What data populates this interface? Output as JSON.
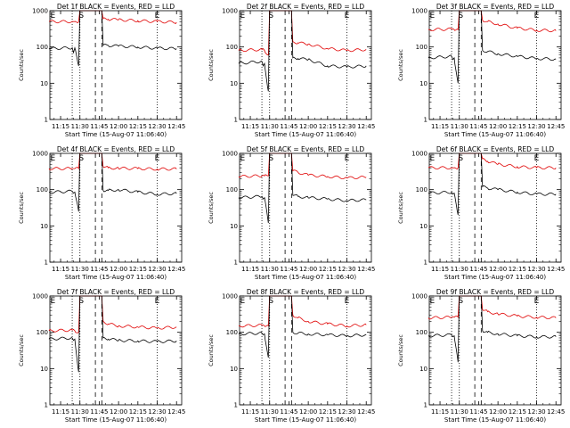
{
  "figure": {
    "colors": {
      "events": "#000000",
      "lld": "#e00000",
      "axis": "#000000"
    }
  },
  "chart_data": [
    {
      "type": "line",
      "title": "Det 1f BLACK = Events, RED = LLD",
      "xlabel": "Start Time (15-Aug-07 11:06:40)",
      "ylabel": "Counts/sec",
      "x_ticks": [
        "11:15",
        "11:30",
        "11:45",
        "12:00",
        "12:15",
        "12:30",
        "12:45"
      ],
      "y_ticks": [
        "1",
        "10",
        "100",
        "1000"
      ],
      "ylim": [
        1,
        1000
      ],
      "y_scale": "log",
      "marker_labels": [
        "E",
        "S",
        "E"
      ],
      "series": [
        {
          "color": "#e00000",
          "x": [
            "11:06",
            "11:24",
            "11:25",
            "11:26",
            "11:29",
            "11:30",
            "11:31",
            "11:32",
            "11:47",
            "11:48",
            "11:52",
            "12:00",
            "12:15",
            "12:30",
            "12:45"
          ],
          "values": [
            500,
            500,
            500,
            500,
            500,
            1000,
            1000,
            1000,
            1000,
            600,
            580,
            560,
            530,
            500,
            480
          ]
        },
        {
          "color": "#000000",
          "x": [
            "11:06",
            "11:24",
            "11:25",
            "11:26",
            "11:29",
            "11:30",
            "11:31",
            "11:32",
            "11:47",
            "11:48",
            "11:52",
            "12:00",
            "12:15",
            "12:30",
            "12:45"
          ],
          "values": [
            90,
            95,
            70,
            95,
            30,
            1000,
            1000,
            1000,
            1000,
            110,
            110,
            105,
            100,
            92,
            90
          ]
        }
      ]
    },
    {
      "type": "line",
      "title": "Det 2f BLACK = Events, RED = LLD",
      "xlabel": "Start Time (15-Aug-07 11:06:40)",
      "ylabel": "Counts/sec",
      "x_ticks": [
        "11:15",
        "11:30",
        "11:45",
        "12:00",
        "12:15",
        "12:30",
        "12:45"
      ],
      "y_ticks": [
        "1",
        "10",
        "100",
        "1000"
      ],
      "ylim": [
        1,
        1000
      ],
      "y_scale": "log",
      "marker_labels": [
        "E",
        "S",
        "E"
      ],
      "series": [
        {
          "color": "#e00000",
          "x": [
            "11:06",
            "11:24",
            "11:25",
            "11:26",
            "11:29",
            "11:30",
            "11:31",
            "11:32",
            "11:47",
            "11:48",
            "11:52",
            "12:00",
            "12:15",
            "12:30",
            "12:45"
          ],
          "values": [
            80,
            85,
            90,
            80,
            60,
            1000,
            1000,
            1000,
            1000,
            140,
            130,
            120,
            90,
            80,
            85
          ]
        },
        {
          "color": "#000000",
          "x": [
            "11:06",
            "11:24",
            "11:25",
            "11:26",
            "11:29",
            "11:30",
            "11:31",
            "11:32",
            "11:47",
            "11:48",
            "11:52",
            "12:00",
            "12:15",
            "12:30",
            "12:45"
          ],
          "values": [
            35,
            40,
            30,
            35,
            6,
            1000,
            1000,
            1000,
            1000,
            50,
            48,
            45,
            30,
            28,
            30
          ]
        }
      ]
    },
    {
      "type": "line",
      "title": "Det 3f BLACK = Events, RED = LLD",
      "xlabel": "Start Time (15-Aug-07 11:06:40)",
      "ylabel": "Counts/sec",
      "x_ticks": [
        "11:15",
        "11:30",
        "11:45",
        "12:00",
        "12:15",
        "12:30",
        "12:45"
      ],
      "y_ticks": [
        "1",
        "10",
        "100",
        "1000"
      ],
      "ylim": [
        1,
        1000
      ],
      "y_scale": "log",
      "marker_labels": [
        "E",
        "S",
        "E"
      ],
      "series": [
        {
          "color": "#e00000",
          "x": [
            "11:06",
            "11:24",
            "11:25",
            "11:26",
            "11:29",
            "11:30",
            "11:31",
            "11:32",
            "11:47",
            "11:48",
            "11:52",
            "12:00",
            "12:15",
            "12:30",
            "12:45"
          ],
          "values": [
            300,
            310,
            320,
            300,
            300,
            1000,
            1000,
            1000,
            1000,
            550,
            500,
            430,
            330,
            290,
            280
          ]
        },
        {
          "color": "#000000",
          "x": [
            "11:06",
            "11:24",
            "11:25",
            "11:26",
            "11:29",
            "11:30",
            "11:31",
            "11:32",
            "11:47",
            "11:48",
            "11:52",
            "12:00",
            "12:15",
            "12:30",
            "12:45"
          ],
          "values": [
            50,
            55,
            45,
            50,
            10,
            1000,
            1000,
            1000,
            1000,
            80,
            75,
            65,
            55,
            48,
            46
          ]
        }
      ]
    },
    {
      "type": "line",
      "title": "Det 4f BLACK = Events, RED = LLD",
      "xlabel": "Start Time (15-Aug-07 11:06:40)",
      "ylabel": "Counts/sec",
      "x_ticks": [
        "11:15",
        "11:30",
        "11:45",
        "12:00",
        "12:15",
        "12:30",
        "12:45"
      ],
      "y_ticks": [
        "1",
        "10",
        "100",
        "1000"
      ],
      "ylim": [
        1,
        1000
      ],
      "y_scale": "log",
      "marker_labels": [
        "E",
        "S",
        "E"
      ],
      "series": [
        {
          "color": "#e00000",
          "x": [
            "11:06",
            "11:24",
            "11:25",
            "11:26",
            "11:29",
            "11:30",
            "11:31",
            "11:32",
            "11:47",
            "11:48",
            "11:52",
            "12:00",
            "12:15",
            "12:30",
            "12:45"
          ],
          "values": [
            380,
            380,
            380,
            380,
            380,
            1000,
            1000,
            1000,
            1000,
            430,
            400,
            390,
            380,
            370,
            370
          ]
        },
        {
          "color": "#000000",
          "x": [
            "11:06",
            "11:24",
            "11:25",
            "11:26",
            "11:29",
            "11:30",
            "11:31",
            "11:32",
            "11:47",
            "11:48",
            "11:52",
            "12:00",
            "12:15",
            "12:30",
            "12:45"
          ],
          "values": [
            85,
            90,
            80,
            85,
            25,
            1000,
            1000,
            1000,
            1000,
            95,
            95,
            100,
            85,
            75,
            78
          ]
        }
      ]
    },
    {
      "type": "line",
      "title": "Det 5f BLACK = Events, RED = LLD",
      "xlabel": "Start Time (15-Aug-07 11:06:40)",
      "ylabel": "Counts/sec",
      "x_ticks": [
        "11:15",
        "11:30",
        "11:45",
        "12:00",
        "12:15",
        "12:30",
        "12:45"
      ],
      "y_ticks": [
        "1",
        "10",
        "100",
        "1000"
      ],
      "ylim": [
        1,
        1000
      ],
      "y_scale": "log",
      "marker_labels": [
        "E",
        "S",
        "E"
      ],
      "series": [
        {
          "color": "#e00000",
          "x": [
            "11:06",
            "11:24",
            "11:25",
            "11:26",
            "11:29",
            "11:30",
            "11:31",
            "11:32",
            "11:47",
            "11:48",
            "11:52",
            "12:00",
            "12:15",
            "12:30",
            "12:45"
          ],
          "values": [
            230,
            240,
            250,
            240,
            240,
            1000,
            1000,
            1000,
            1000,
            330,
            300,
            250,
            230,
            210,
            220
          ]
        },
        {
          "color": "#000000",
          "x": [
            "11:06",
            "11:24",
            "11:25",
            "11:26",
            "11:29",
            "11:30",
            "11:31",
            "11:32",
            "11:47",
            "11:48",
            "11:52",
            "12:00",
            "12:15",
            "12:30",
            "12:45"
          ],
          "values": [
            60,
            65,
            55,
            60,
            12,
            1000,
            1000,
            1000,
            1000,
            70,
            65,
            60,
            55,
            50,
            52
          ]
        }
      ]
    },
    {
      "type": "line",
      "title": "Det 6f BLACK = Events, RED = LLD",
      "xlabel": "Start Time (15-Aug-07 11:06:40)",
      "ylabel": "Counts/sec",
      "x_ticks": [
        "11:15",
        "11:30",
        "11:45",
        "12:00",
        "12:15",
        "12:30",
        "12:45"
      ],
      "y_ticks": [
        "1",
        "10",
        "100",
        "1000"
      ],
      "ylim": [
        1,
        1000
      ],
      "y_scale": "log",
      "marker_labels": [
        "E",
        "S",
        "E"
      ],
      "series": [
        {
          "color": "#e00000",
          "x": [
            "11:06",
            "11:24",
            "11:25",
            "11:26",
            "11:29",
            "11:30",
            "11:31",
            "11:32",
            "11:47",
            "11:48",
            "11:52",
            "12:00",
            "12:15",
            "12:30",
            "12:45"
          ],
          "values": [
            400,
            400,
            400,
            400,
            400,
            1000,
            1000,
            1000,
            1000,
            700,
            600,
            500,
            430,
            400,
            400
          ]
        },
        {
          "color": "#000000",
          "x": [
            "11:06",
            "11:24",
            "11:25",
            "11:26",
            "11:29",
            "11:30",
            "11:31",
            "11:32",
            "11:47",
            "11:48",
            "11:52",
            "12:00",
            "12:15",
            "12:30",
            "12:45"
          ],
          "values": [
            80,
            85,
            75,
            80,
            20,
            1000,
            1000,
            1000,
            1000,
            120,
            110,
            100,
            85,
            75,
            75
          ]
        }
      ]
    },
    {
      "type": "line",
      "title": "Det 7f BLACK = Events, RED = LLD",
      "xlabel": "Start Time (15-Aug-07 11:06:40)",
      "ylabel": "Counts/sec",
      "x_ticks": [
        "11:15",
        "11:30",
        "11:45",
        "12:00",
        "12:15",
        "12:30",
        "12:45"
      ],
      "y_ticks": [
        "1",
        "10",
        "100",
        "1000"
      ],
      "ylim": [
        1,
        1000
      ],
      "y_scale": "log",
      "marker_labels": [
        "E",
        "S",
        "E"
      ],
      "series": [
        {
          "color": "#e00000",
          "x": [
            "11:06",
            "11:24",
            "11:25",
            "11:26",
            "11:29",
            "11:30",
            "11:31",
            "11:32",
            "11:47",
            "11:48",
            "11:52",
            "12:00",
            "12:15",
            "12:30",
            "12:45"
          ],
          "values": [
            110,
            115,
            120,
            110,
            100,
            1000,
            1000,
            1000,
            1000,
            200,
            170,
            150,
            140,
            130,
            140
          ]
        },
        {
          "color": "#000000",
          "x": [
            "11:06",
            "11:24",
            "11:25",
            "11:26",
            "11:29",
            "11:30",
            "11:31",
            "11:32",
            "11:47",
            "11:48",
            "11:52",
            "12:00",
            "12:15",
            "12:30",
            "12:45"
          ],
          "values": [
            65,
            70,
            60,
            65,
            8,
            1000,
            1000,
            1000,
            1000,
            70,
            65,
            60,
            58,
            55,
            58
          ]
        }
      ]
    },
    {
      "type": "line",
      "title": "Det 8f BLACK = Events, RED = LLD",
      "xlabel": "Start Time (15-Aug-07 11:06:40)",
      "ylabel": "Counts/sec",
      "x_ticks": [
        "11:15",
        "11:30",
        "11:45",
        "12:00",
        "12:15",
        "12:30",
        "12:45"
      ],
      "y_ticks": [
        "1",
        "10",
        "100",
        "1000"
      ],
      "ylim": [
        1,
        1000
      ],
      "y_scale": "log",
      "marker_labels": [
        "E",
        "S",
        "E"
      ],
      "series": [
        {
          "color": "#e00000",
          "x": [
            "11:06",
            "11:24",
            "11:25",
            "11:26",
            "11:29",
            "11:30",
            "11:31",
            "11:32",
            "11:47",
            "11:48",
            "11:52",
            "12:00",
            "12:15",
            "12:30",
            "12:45"
          ],
          "values": [
            150,
            155,
            160,
            150,
            150,
            1000,
            1000,
            1000,
            1000,
            300,
            250,
            200,
            170,
            150,
            160
          ]
        },
        {
          "color": "#000000",
          "x": [
            "11:06",
            "11:24",
            "11:25",
            "11:26",
            "11:29",
            "11:30",
            "11:31",
            "11:32",
            "11:47",
            "11:48",
            "11:52",
            "12:00",
            "12:15",
            "12:30",
            "12:45"
          ],
          "values": [
            90,
            95,
            85,
            90,
            20,
            1000,
            1000,
            1000,
            1000,
            100,
            95,
            90,
            85,
            80,
            85
          ]
        }
      ]
    },
    {
      "type": "line",
      "title": "Det 9f BLACK = Events, RED = LLD",
      "xlabel": "Start Time (15-Aug-07 11:06:40)",
      "ylabel": "Counts/sec",
      "x_ticks": [
        "11:15",
        "11:30",
        "11:45",
        "12:00",
        "12:15",
        "12:30",
        "12:45"
      ],
      "y_ticks": [
        "1",
        "10",
        "100",
        "1000"
      ],
      "ylim": [
        1,
        1000
      ],
      "y_scale": "log",
      "marker_labels": [
        "E",
        "S",
        "E"
      ],
      "series": [
        {
          "color": "#e00000",
          "x": [
            "11:06",
            "11:24",
            "11:25",
            "11:26",
            "11:29",
            "11:30",
            "11:31",
            "11:32",
            "11:47",
            "11:48",
            "11:52",
            "12:00",
            "12:15",
            "12:30",
            "12:45"
          ],
          "values": [
            250,
            260,
            270,
            260,
            260,
            1000,
            1000,
            1000,
            1000,
            420,
            370,
            320,
            280,
            260,
            250
          ]
        },
        {
          "color": "#000000",
          "x": [
            "11:06",
            "11:24",
            "11:25",
            "11:26",
            "11:29",
            "11:30",
            "11:31",
            "11:32",
            "11:47",
            "11:48",
            "11:52",
            "12:00",
            "12:15",
            "12:30",
            "12:45"
          ],
          "values": [
            80,
            85,
            75,
            80,
            15,
            1000,
            1000,
            1000,
            1000,
            110,
            100,
            90,
            80,
            75,
            75
          ]
        }
      ]
    }
  ]
}
